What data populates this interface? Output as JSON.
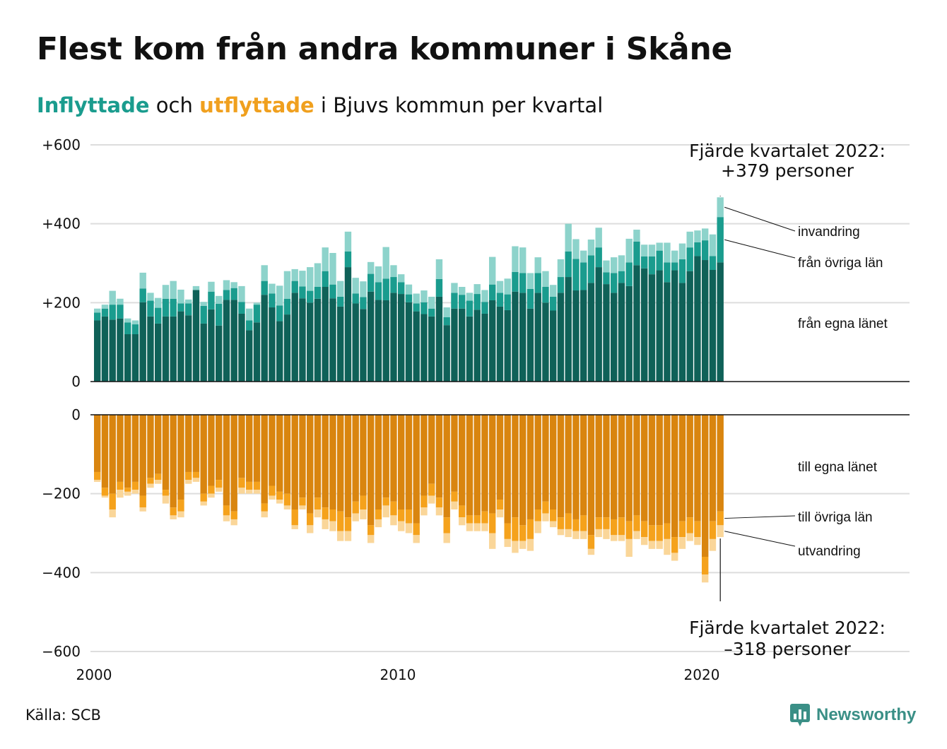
{
  "title": "Flest kom från andra kommuner i Skåne",
  "subtitle": {
    "part1": "Inflyttade",
    "part2": " och ",
    "part3": "utflyttade",
    "part4": " i Bjuvs kommun per kvartal"
  },
  "source": "Källa: SCB",
  "logo": {
    "text": "Newsworthy",
    "icon": "newsworthy-chart-icon"
  },
  "colors": {
    "in_egna": "#0f6158",
    "in_ovriga": "#1a9c8e",
    "in_invandring": "#8dd3cb",
    "out_egna": "#d9850f",
    "out_ovriga": "#f5a21c",
    "out_utvandring": "#fad699",
    "grid": "#dddddd",
    "axis": "#111111"
  },
  "chart_data": {
    "type": "bar",
    "stacked": true,
    "x_start": 2000,
    "periodicity": "quarter",
    "xticks": [
      {
        "value": 2000,
        "label": "2000"
      },
      {
        "value": 2010,
        "label": "2010"
      },
      {
        "value": 2020,
        "label": "2020"
      }
    ],
    "top": {
      "yticks": [
        {
          "value": 0,
          "label": "0"
        },
        {
          "value": 200,
          "label": "+200"
        },
        {
          "value": 400,
          "label": "+400"
        },
        {
          "value": 600,
          "label": "+600"
        }
      ],
      "ylim": [
        0,
        600
      ],
      "series": [
        {
          "name": "från egna länet",
          "values": [
            155,
            165,
            157,
            160,
            120,
            120,
            201,
            165,
            147,
            165,
            165,
            178,
            168,
            232,
            147,
            183,
            142,
            207,
            207,
            172,
            130,
            150,
            220,
            188,
            153,
            170,
            225,
            211,
            200,
            210,
            240,
            211,
            190,
            290,
            198,
            184,
            228,
            207,
            206,
            225,
            222,
            201,
            178,
            171,
            165,
            215,
            143,
            185,
            185,
            165,
            182,
            172,
            206,
            190,
            181,
            228,
            225,
            185,
            225,
            200,
            180,
            225,
            265,
            231,
            232,
            250,
            290,
            247,
            225,
            250,
            242,
            295,
            287,
            272,
            282,
            252,
            282,
            250,
            280,
            318,
            308,
            283,
            302
          ]
        },
        {
          "name": "från övriga län",
          "values": [
            20,
            20,
            38,
            35,
            30,
            25,
            35,
            40,
            40,
            45,
            45,
            20,
            30,
            0,
            45,
            45,
            55,
            25,
            30,
            30,
            25,
            45,
            35,
            35,
            40,
            40,
            30,
            30,
            30,
            30,
            40,
            35,
            25,
            40,
            25,
            30,
            45,
            45,
            55,
            40,
            30,
            20,
            20,
            30,
            20,
            45,
            20,
            40,
            35,
            40,
            40,
            30,
            40,
            35,
            40,
            50,
            50,
            50,
            50,
            40,
            35,
            40,
            65,
            80,
            70,
            70,
            50,
            30,
            50,
            30,
            60,
            60,
            30,
            45,
            50,
            50,
            20,
            60,
            60,
            35,
            50,
            35,
            115
          ]
        },
        {
          "name": "invandring",
          "values": [
            10,
            10,
            35,
            15,
            10,
            10,
            40,
            20,
            25,
            35,
            45,
            35,
            10,
            10,
            10,
            25,
            20,
            25,
            15,
            40,
            30,
            5,
            40,
            25,
            50,
            70,
            30,
            40,
            60,
            60,
            60,
            80,
            40,
            50,
            40,
            40,
            30,
            40,
            80,
            30,
            20,
            25,
            25,
            30,
            30,
            50,
            25,
            25,
            20,
            20,
            25,
            30,
            70,
            30,
            40,
            65,
            65,
            40,
            40,
            40,
            30,
            45,
            70,
            50,
            30,
            40,
            50,
            30,
            40,
            40,
            60,
            30,
            30,
            30,
            20,
            50,
            30,
            40,
            40,
            30,
            30,
            55,
            50
          ]
        }
      ]
    },
    "bottom": {
      "yticks": [
        {
          "value": 0,
          "label": "0"
        },
        {
          "value": -200,
          "label": "−200"
        },
        {
          "value": -400,
          "label": "−400"
        },
        {
          "value": -600,
          "label": "−600"
        }
      ],
      "ylim": [
        -600,
        0
      ],
      "series": [
        {
          "name": "till egna länet",
          "values": [
            -145,
            -185,
            -200,
            -170,
            -185,
            -170,
            -205,
            -160,
            -150,
            -190,
            -235,
            -215,
            -145,
            -145,
            -200,
            -180,
            -165,
            -230,
            -245,
            -160,
            -170,
            -170,
            -225,
            -180,
            -195,
            -200,
            -240,
            -210,
            -250,
            -210,
            -235,
            -240,
            -245,
            -260,
            -220,
            -205,
            -280,
            -240,
            -210,
            -220,
            -240,
            -240,
            -275,
            -205,
            -175,
            -210,
            -260,
            -195,
            -230,
            -255,
            -255,
            -245,
            -250,
            -215,
            -275,
            -260,
            -280,
            -265,
            -240,
            -220,
            -240,
            -260,
            -250,
            -265,
            -255,
            -305,
            -260,
            -260,
            -265,
            -260,
            -270,
            -255,
            -270,
            -280,
            -280,
            -275,
            -310,
            -270,
            -260,
            -270,
            -360,
            -270,
            -245
          ]
        },
        {
          "name": "till övriga län",
          "values": [
            -20,
            -20,
            -40,
            -20,
            -10,
            -20,
            -30,
            -15,
            -15,
            -15,
            -20,
            -30,
            -20,
            -15,
            -20,
            -20,
            -20,
            -25,
            -20,
            -25,
            -20,
            -20,
            -20,
            -25,
            -20,
            -30,
            -40,
            -20,
            -30,
            -30,
            -30,
            -30,
            -50,
            -35,
            -30,
            -35,
            -25,
            -25,
            -20,
            -35,
            -30,
            -35,
            -30,
            -30,
            -30,
            -25,
            -40,
            -25,
            -30,
            -20,
            -20,
            -30,
            -50,
            -25,
            -40,
            -60,
            -40,
            -50,
            -30,
            -30,
            -30,
            -30,
            -40,
            -30,
            -40,
            -35,
            -30,
            -30,
            -40,
            -45,
            -45,
            -40,
            -40,
            -40,
            -40,
            -40,
            -40,
            -40,
            -40,
            -40,
            -45,
            -45,
            -35
          ]
        },
        {
          "name": "utvandring",
          "values": [
            -5,
            -5,
            -20,
            -20,
            -10,
            -10,
            -10,
            -10,
            -10,
            -20,
            -10,
            -15,
            -10,
            -10,
            -10,
            -10,
            -10,
            -15,
            -15,
            -15,
            -10,
            -10,
            -15,
            -10,
            -10,
            -10,
            -10,
            -10,
            -20,
            -20,
            -25,
            -25,
            -25,
            -25,
            -20,
            -25,
            -20,
            -20,
            -30,
            -25,
            -25,
            -25,
            -20,
            -20,
            -20,
            -20,
            -25,
            -20,
            -20,
            -20,
            -20,
            -20,
            -40,
            -20,
            -20,
            -30,
            -20,
            -30,
            -30,
            -20,
            -15,
            -15,
            -20,
            -20,
            -20,
            -15,
            -20,
            -25,
            -15,
            -15,
            -45,
            -20,
            -20,
            -20,
            -20,
            -40,
            -20,
            -30,
            -20,
            -20,
            -20,
            -30,
            -30
          ]
        }
      ]
    },
    "annotations": {
      "top_line1": "Fjärde kvartalet 2022:",
      "top_line2": "+379 personer",
      "bottom_line1": "Fjärde kvartalet 2022:",
      "bottom_line2": "–318 personer"
    }
  }
}
